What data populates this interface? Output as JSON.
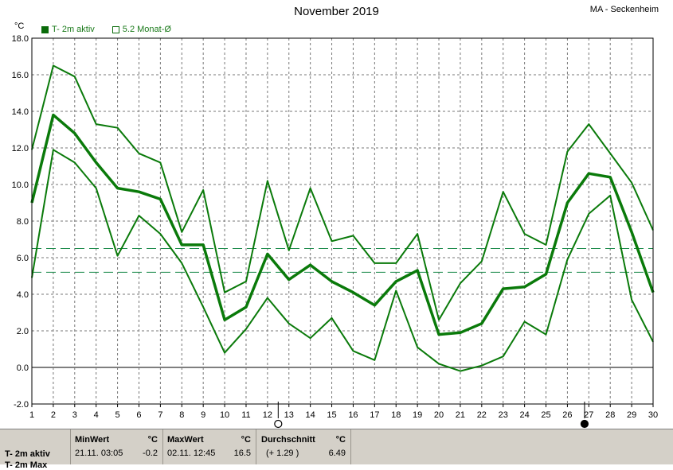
{
  "header": {
    "title": "November 2019",
    "station": "MA - Seckenheim",
    "unit": "°C"
  },
  "legend": [
    {
      "label": "T- 2m aktiv",
      "color": "#0a6b0a",
      "filled": true
    },
    {
      "label": "5.2 Monat-Ø",
      "color": "#0a6b0a",
      "filled": false
    }
  ],
  "stats": {
    "row1_name": "T- 2m aktiv",
    "row2_name": "T- 2m Max",
    "min_header": "MinWert",
    "min_unit": "°C",
    "min_time": "21.11.  03:05",
    "min_value": "-0.2",
    "max_header": "MaxWert",
    "max_unit": "°C",
    "max_time": "02.11.  12:45",
    "max_value": "16.5",
    "avg_header": "Durchschnitt",
    "avg_unit": "°C",
    "avg_delta": "(+ 1.29 )",
    "avg_value": "6.49"
  },
  "chart_data": {
    "type": "line",
    "title": "November 2019",
    "ylabel": "°C",
    "x": [
      1,
      2,
      3,
      4,
      5,
      6,
      7,
      8,
      9,
      10,
      11,
      12,
      13,
      14,
      15,
      16,
      17,
      18,
      19,
      20,
      21,
      22,
      23,
      24,
      25,
      26,
      27,
      28,
      29,
      30
    ],
    "ylim": [
      -2,
      18
    ],
    "yticks": [
      "-2.0",
      "0.0",
      "2.0",
      "4.0",
      "6.0",
      "8.0",
      "10.0",
      "12.0",
      "14.0",
      "16.0",
      "18.0"
    ],
    "grid": true,
    "series": [
      {
        "name": "max",
        "color": "#0a7a0a",
        "width": 2,
        "values": [
          11.9,
          16.5,
          15.9,
          13.3,
          13.1,
          11.7,
          11.2,
          7.4,
          9.7,
          4.1,
          4.7,
          10.2,
          6.4,
          9.8,
          6.9,
          7.2,
          5.7,
          5.7,
          7.3,
          2.6,
          4.6,
          5.8,
          9.6,
          7.3,
          6.7,
          11.8,
          13.3,
          11.7,
          10.1,
          7.5
        ]
      },
      {
        "name": "T- 2m aktiv",
        "color": "#0a7a0a",
        "width": 3.5,
        "values": [
          9.0,
          13.8,
          12.8,
          11.2,
          9.8,
          9.6,
          9.2,
          6.7,
          6.7,
          2.6,
          3.3,
          6.2,
          4.8,
          5.6,
          4.7,
          4.1,
          3.4,
          4.7,
          5.3,
          1.8,
          1.9,
          2.4,
          4.3,
          4.4,
          5.1,
          9.0,
          10.6,
          10.4,
          7.4,
          4.1
        ]
      },
      {
        "name": "min",
        "color": "#0a7a0a",
        "width": 2,
        "values": [
          4.9,
          11.9,
          11.2,
          9.8,
          6.1,
          8.3,
          7.3,
          5.7,
          3.3,
          0.8,
          2.1,
          3.8,
          2.4,
          1.6,
          2.7,
          0.9,
          0.4,
          4.2,
          1.1,
          0.2,
          -0.2,
          0.1,
          0.6,
          2.5,
          1.8,
          5.9,
          8.4,
          9.4,
          3.7,
          1.4
        ]
      }
    ],
    "reference_lines": [
      {
        "value": 6.5,
        "color": "#1a8a4a",
        "dash": "12,6"
      },
      {
        "value": 5.2,
        "color": "#1a8a4a",
        "dash": "12,6"
      }
    ],
    "moon_phases": [
      {
        "day": 12.5,
        "phase": "full"
      },
      {
        "day": 26.8,
        "phase": "new"
      }
    ]
  }
}
